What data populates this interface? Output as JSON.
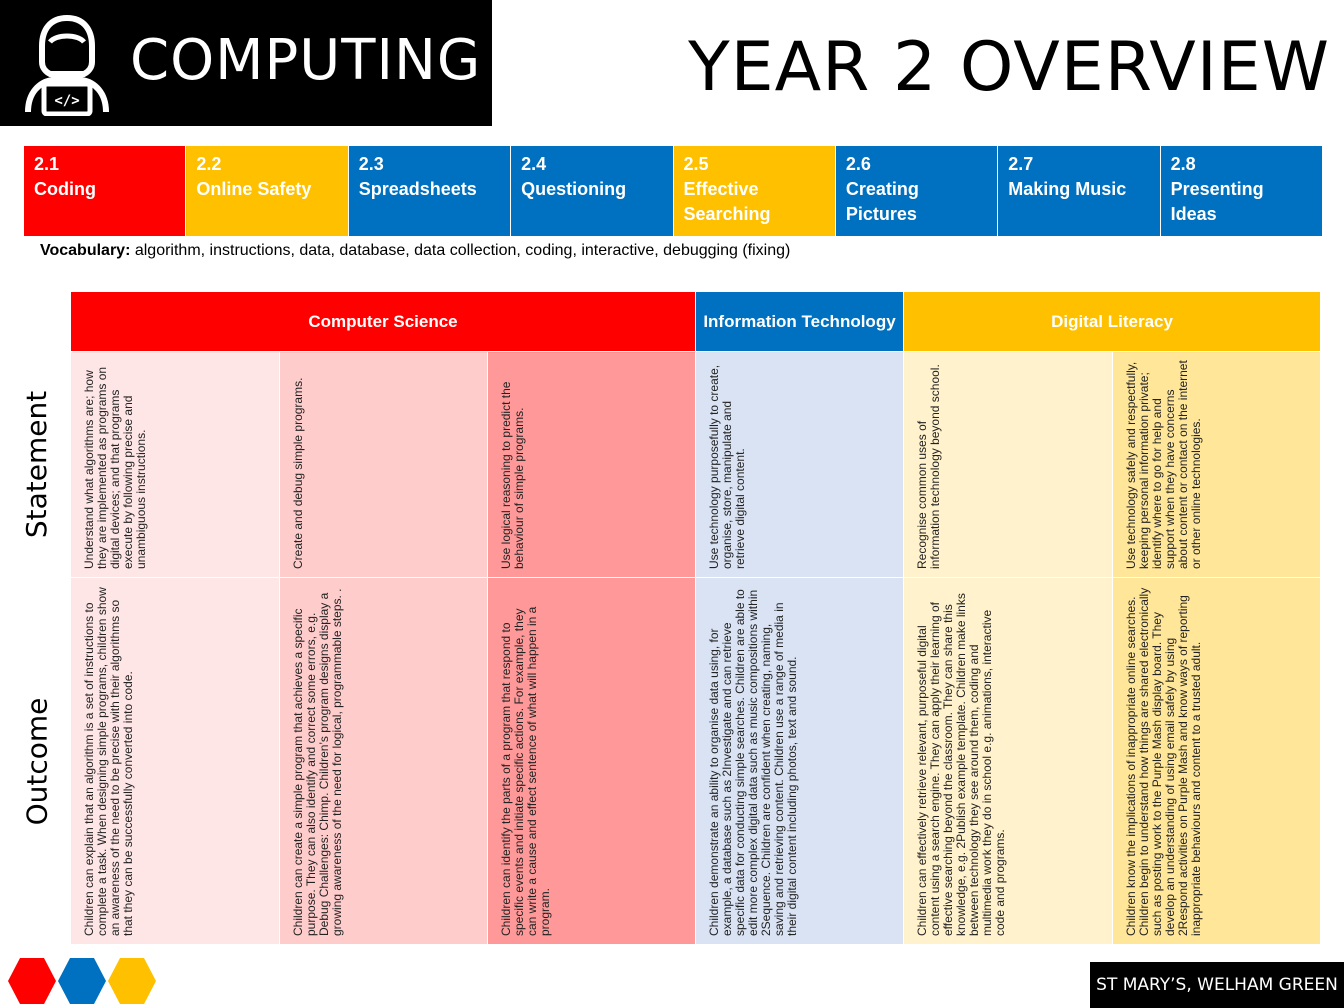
{
  "header": {
    "subject": "COMPUTING",
    "overview": "YEAR 2 OVERVIEW"
  },
  "units": [
    {
      "number": "2.1",
      "name": "Coding",
      "color": "#ff0000"
    },
    {
      "number": "2.2",
      "name": "Online Safety",
      "color": "#ffc000"
    },
    {
      "number": "2.3",
      "name": "Spreadsheets",
      "color": "#0070c0"
    },
    {
      "number": "2.4",
      "name": "Questioning",
      "color": "#0070c0"
    },
    {
      "number": "2.5",
      "name": "Effective Searching",
      "color": "#ffc000"
    },
    {
      "number": "2.6",
      "name": "Creating Pictures",
      "color": "#0070c0"
    },
    {
      "number": "2.7",
      "name": "Making Music",
      "color": "#0070c0"
    },
    {
      "number": "2.8",
      "name": "Presenting Ideas",
      "color": "#0070c0"
    }
  ],
  "vocabulary": {
    "label": "Vocabulary:",
    "text": " algorithm, instructions, data, database, data collection,  coding, interactive, debugging (fixing)"
  },
  "strands": {
    "computer_science": "Computer Science",
    "information_technology": "Information Technology",
    "digital_literacy": "Digital Literacy"
  },
  "row_labels": {
    "statement": "Statement",
    "outcome": "Outcome"
  },
  "statements": [
    "Understand what algorithms are; how they are implemented as programs on digital devices; and that programs execute by following precise and unambiguous instructions.",
    "Create and debug simple programs.",
    "Use logical reasoning to predict the behaviour of simple programs.",
    "Use technology purposefully to create, organise, store, manipulate and retrieve digital content.",
    "Recognise common uses of information technology beyond school.",
    "Use technology safely and respectfully, keeping personal information private; identify where to go for help and support when they have concerns about content or contact on the internet or other online technologies."
  ],
  "outcomes": [
    "Children can explain that an algorithm is a set of instructions to complete a task. When designing simple programs, children show an awareness of the need to be precise with their algorithms so that they can be successfully converted into code.",
    "Children can create a simple program that achieves a specific purpose. They can also identify and correct some errors, e.g. Debug Challenges: Chimp. Children’s program designs display a growing awareness of the need for logical, programmable steps. .",
    "Children can identify the parts of a program that respond to specific events and initiate specific actions. For example, they can write a cause and effect sentence of what will happen in a program.",
    "Children demonstrate an ability to organise data using, for example, a database such as 2Investigate and can retrieve specific data for conducting simple searches. Children are able to edit more complex digital data such as music compositions within 2Sequence. Children are confident when creating, naming, saving and retrieving content. Children use a range of media in their digital content including photos, text and sound.",
    "Children can effectively retrieve relevant, purposeful digital content using a search engine. They can apply their learning of effective searching beyond the classroom. They can share this knowledge, e.g. 2Publish example template. Children make links between technology they see around them, coding and multimedia work they do in school e.g. animations, interactive code and programs.",
    "Children know the implications of inappropriate online searches. Children begin to understand how things are shared electronically such as posting work to the Purple Mash display board. They develop an understanding of using email safely by using 2Respond activities on Purple Mash and know ways of reporting inappropriate behaviours and content to a trusted adult."
  ],
  "footer": {
    "school": "ST MARY’S, WELHAM GREEN",
    "hex_colors": [
      "#ff0000",
      "#0070c0",
      "#ffc000"
    ]
  }
}
